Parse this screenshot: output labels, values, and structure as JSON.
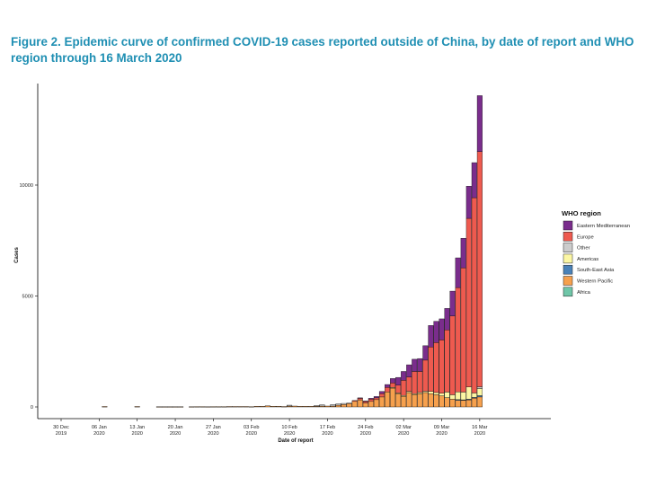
{
  "title": "Figure 2. Epidemic curve of confirmed COVID-19 cases reported outside of China, by date of report and WHO region through 16 March 2020",
  "chart_data": {
    "type": "bar",
    "stacked": true,
    "title": "Figure 2. Epidemic curve of confirmed COVID-19 cases reported outside of China, by date of report and WHO region through 16 March 2020",
    "xlabel": "Date of report",
    "ylabel": "Cases",
    "ylim": [
      0,
      14000
    ],
    "yticks": [
      0,
      5000,
      10000
    ],
    "xticks": [
      {
        "day": 0,
        "line1": "30 Dec",
        "line2": "2019"
      },
      {
        "day": 7,
        "line1": "06 Jan",
        "line2": "2020"
      },
      {
        "day": 14,
        "line1": "13 Jan",
        "line2": "2020"
      },
      {
        "day": 21,
        "line1": "20 Jan",
        "line2": "2020"
      },
      {
        "day": 28,
        "line1": "27 Jan",
        "line2": "2020"
      },
      {
        "day": 35,
        "line1": "03 Feb",
        "line2": "2020"
      },
      {
        "day": 42,
        "line1": "10 Feb",
        "line2": "2020"
      },
      {
        "day": 49,
        "line1": "17 Feb",
        "line2": "2020"
      },
      {
        "day": 56,
        "line1": "24 Feb",
        "line2": "2020"
      },
      {
        "day": 63,
        "line1": "02 Mar",
        "line2": "2020"
      },
      {
        "day": 70,
        "line1": "09 Mar",
        "line2": "2020"
      },
      {
        "day": 77,
        "line1": "16 Mar",
        "line2": "2020"
      }
    ],
    "legend": {
      "title": "WHO region",
      "placement": "right",
      "entries": [
        "Eastern Mediterranean",
        "Europe",
        "Other",
        "Americas",
        "South-East Asia",
        "Western Pacific",
        "Africa"
      ]
    },
    "series": [
      {
        "name": "Africa",
        "color": "#6fc6a8"
      },
      {
        "name": "Western Pacific",
        "color": "#f6a04d"
      },
      {
        "name": "South-East Asia",
        "color": "#4a82b8"
      },
      {
        "name": "Americas",
        "color": "#fcf7a4"
      },
      {
        "name": "Other",
        "color": "#cccccc"
      },
      {
        "name": "Europe",
        "color": "#ee5a4f"
      },
      {
        "name": "Eastern Mediterranean",
        "color": "#7a2d8c"
      }
    ],
    "bars": [
      {
        "date": "2020-01-07",
        "Western Pacific": 20
      },
      {
        "date": "2020-01-13",
        "Western Pacific": 20
      },
      {
        "date": "2020-01-17",
        "Western Pacific": 10
      },
      {
        "date": "2020-01-18",
        "Western Pacific": 10
      },
      {
        "date": "2020-01-19",
        "Western Pacific": 10
      },
      {
        "date": "2020-01-20",
        "Western Pacific": 10
      },
      {
        "date": "2020-01-21",
        "Western Pacific": 10
      },
      {
        "date": "2020-01-23",
        "Western Pacific": 10
      },
      {
        "date": "2020-01-24",
        "Western Pacific": 15
      },
      {
        "date": "2020-01-25",
        "Western Pacific": 15
      },
      {
        "date": "2020-01-26",
        "Western Pacific": 10
      },
      {
        "date": "2020-01-27",
        "Western Pacific": 15
      },
      {
        "date": "2020-01-28",
        "Western Pacific": 15
      },
      {
        "date": "2020-01-29",
        "Western Pacific": 15
      },
      {
        "date": "2020-01-30",
        "Western Pacific": 20
      },
      {
        "date": "2020-01-31",
        "Western Pacific": 20
      },
      {
        "date": "2020-02-01",
        "Western Pacific": 20
      },
      {
        "date": "2020-02-02",
        "Western Pacific": 20
      },
      {
        "date": "2020-02-03",
        "Western Pacific": 15
      },
      {
        "date": "2020-02-04",
        "Western Pacific": 30
      },
      {
        "date": "2020-02-05",
        "Western Pacific": 30
      },
      {
        "date": "2020-02-06",
        "Western Pacific": 50
      },
      {
        "date": "2020-02-07",
        "Western Pacific": 30
      },
      {
        "date": "2020-02-08",
        "Western Pacific": 30
      },
      {
        "date": "2020-02-09",
        "Western Pacific": 20
      },
      {
        "date": "2020-02-10",
        "Western Pacific": 40,
        "Other": 40
      },
      {
        "date": "2020-02-11",
        "Western Pacific": 40
      },
      {
        "date": "2020-02-12",
        "Western Pacific": 30
      },
      {
        "date": "2020-02-13",
        "Western Pacific": 30
      },
      {
        "date": "2020-02-14",
        "Western Pacific": 30
      },
      {
        "date": "2020-02-15",
        "Western Pacific": 30,
        "Other": 40
      },
      {
        "date": "2020-02-16",
        "Western Pacific": 40,
        "Other": 60
      },
      {
        "date": "2020-02-17",
        "Western Pacific": 40
      },
      {
        "date": "2020-02-18",
        "Western Pacific": 40,
        "Other": 70
      },
      {
        "date": "2020-02-19",
        "Western Pacific": 80,
        "Other": 60
      },
      {
        "date": "2020-02-20",
        "Western Pacific": 110,
        "Other": 50
      },
      {
        "date": "2020-02-21",
        "Western Pacific": 150,
        "Other": 30
      },
      {
        "date": "2020-02-22",
        "Western Pacific": 250,
        "Europe": 40
      },
      {
        "date": "2020-02-23",
        "Western Pacific": 320,
        "Europe": 70,
        "Eastern Mediterranean": 20
      },
      {
        "date": "2020-02-24",
        "Western Pacific": 180,
        "Europe": 70,
        "Eastern Mediterranean": 20
      },
      {
        "date": "2020-02-25",
        "Western Pacific": 250,
        "Europe": 100,
        "Eastern Mediterranean": 40
      },
      {
        "date": "2020-02-26",
        "Western Pacific": 330,
        "Europe": 80,
        "Eastern Mediterranean": 60
      },
      {
        "date": "2020-02-27",
        "Western Pacific": 450,
        "Europe": 150,
        "Eastern Mediterranean": 100
      },
      {
        "date": "2020-02-28",
        "Western Pacific": 680,
        "Europe": 200,
        "Eastern Mediterranean": 130
      },
      {
        "date": "2020-02-29",
        "Western Pacific": 850,
        "Europe": 200,
        "Eastern Mediterranean": 200,
        "Americas": 30
      },
      {
        "date": "2020-03-01",
        "Western Pacific": 600,
        "Europe": 350,
        "Eastern Mediterranean": 350,
        "Americas": 30
      },
      {
        "date": "2020-03-02",
        "Western Pacific": 480,
        "Europe": 680,
        "Eastern Mediterranean": 400,
        "Americas": 40
      },
      {
        "date": "2020-03-03",
        "Western Pacific": 650,
        "Europe": 650,
        "Eastern Mediterranean": 550,
        "Americas": 50
      },
      {
        "date": "2020-03-04",
        "Western Pacific": 560,
        "Europe": 1000,
        "Eastern Mediterranean": 550,
        "Americas": 40
      },
      {
        "date": "2020-03-05",
        "Western Pacific": 600,
        "Europe": 950,
        "Eastern Mediterranean": 580,
        "Americas": 50
      },
      {
        "date": "2020-03-06",
        "Western Pacific": 650,
        "Europe": 1400,
        "Eastern Mediterranean": 650,
        "Americas": 60
      },
      {
        "date": "2020-03-07",
        "Western Pacific": 600,
        "Europe": 2000,
        "Eastern Mediterranean": 970,
        "Americas": 100
      },
      {
        "date": "2020-03-08",
        "Western Pacific": 550,
        "Europe": 2250,
        "Eastern Mediterranean": 960,
        "Americas": 100
      },
      {
        "date": "2020-03-09",
        "Western Pacific": 500,
        "Europe": 2400,
        "Eastern Mediterranean": 950,
        "Americas": 120
      },
      {
        "date": "2020-03-10",
        "Western Pacific": 420,
        "Europe": 2800,
        "Eastern Mediterranean": 970,
        "Americas": 250
      },
      {
        "date": "2020-03-11",
        "Western Pacific": 350,
        "Europe": 3550,
        "Eastern Mediterranean": 1120,
        "Americas": 200
      },
      {
        "date": "2020-03-12",
        "Western Pacific": 300,
        "Europe": 4700,
        "Eastern Mediterranean": 1340,
        "Americas": 350,
        "South-East Asia": 30
      },
      {
        "date": "2020-03-13",
        "Western Pacific": 300,
        "Europe": 5600,
        "Eastern Mediterranean": 1330,
        "Americas": 350,
        "South-East Asia": 20
      },
      {
        "date": "2020-03-14",
        "Western Pacific": 320,
        "Europe": 7600,
        "Eastern Mediterranean": 1450,
        "Americas": 550,
        "South-East Asia": 30
      },
      {
        "date": "2020-03-15",
        "Western Pacific": 400,
        "Europe": 8800,
        "Eastern Mediterranean": 1580,
        "Americas": 200,
        "South-East Asia": 30
      },
      {
        "date": "2020-03-16",
        "Western Pacific": 450,
        "Europe": 10600,
        "Eastern Mediterranean": 2520,
        "Americas": 320,
        "South-East Asia": 60,
        "Other": 80
      }
    ]
  }
}
